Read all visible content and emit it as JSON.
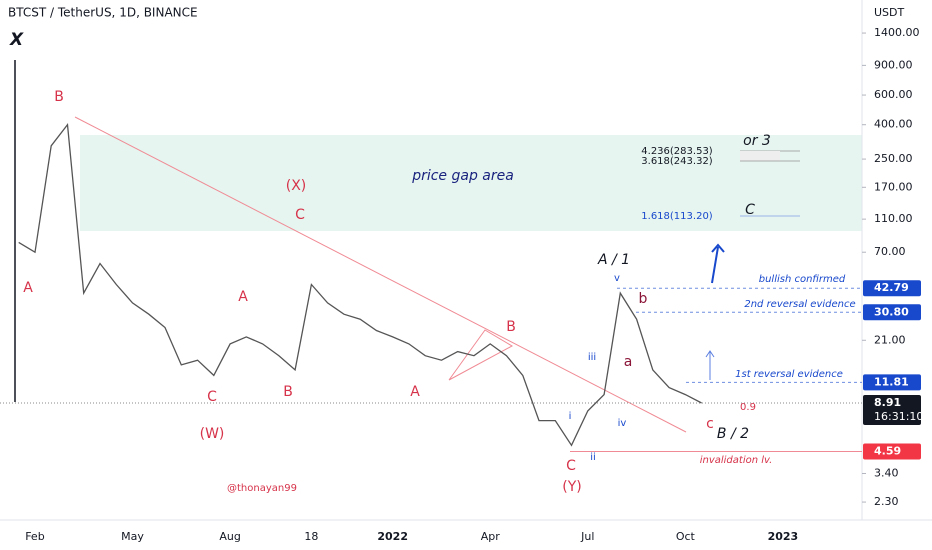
{
  "header": {
    "symbol": "BTCST / TetherUS, 1D, BINANCE",
    "logo": "X"
  },
  "chart_data": {
    "type": "line",
    "log_scale": true,
    "color": "#555555",
    "currency": "USDT",
    "categories": [
      null,
      "Feb",
      null,
      null,
      null,
      null,
      null,
      "May",
      null,
      null,
      null,
      null,
      null,
      "Aug",
      null,
      null,
      null,
      null,
      "18",
      null,
      null,
      null,
      null,
      "2022",
      null,
      null,
      null,
      null,
      null,
      "Apr",
      null,
      null,
      null,
      null,
      null,
      "Jul",
      null,
      null,
      null,
      null,
      null,
      "Oct",
      null,
      null,
      null,
      null,
      null,
      "2023"
    ],
    "values": [
      80,
      70,
      300,
      400,
      40,
      60,
      45,
      35,
      30,
      25,
      15,
      16,
      13,
      20,
      22,
      20,
      17,
      14,
      45,
      35,
      30,
      28,
      24,
      22,
      20,
      17,
      16,
      18,
      17,
      20,
      17,
      13,
      7,
      7,
      5,
      8,
      10,
      40,
      28,
      14,
      11,
      10,
      8.91,
      null,
      null,
      null,
      null,
      null
    ],
    "ylim": [
      1.8,
      2200
    ],
    "yticks": [
      {
        "value": 1400,
        "label": "1400.00"
      },
      {
        "value": 900,
        "label": "900.00"
      },
      {
        "value": 600,
        "label": "600.00"
      },
      {
        "value": 400,
        "label": "400.00"
      },
      {
        "value": 250,
        "label": "250.00"
      },
      {
        "value": 170,
        "label": "170.00"
      },
      {
        "value": 110,
        "label": "110.00"
      },
      {
        "value": 70,
        "label": "70.00"
      },
      {
        "value": 21,
        "label": "21.00"
      },
      {
        "value": 3.4,
        "label": "3.40"
      },
      {
        "value": 2.3,
        "label": "2.30"
      }
    ],
    "price_badges": [
      {
        "value": 42.79,
        "label": "42.79",
        "color": "#1848cc"
      },
      {
        "value": 30.8,
        "label": "30.80",
        "color": "#1848cc"
      },
      {
        "value": 11.81,
        "label": "11.81",
        "color": "#1848cc"
      },
      {
        "value": 8.91,
        "label": "8.91",
        "color": "#131722",
        "countdown": "16:31:10"
      },
      {
        "value": 4.59,
        "label": "4.59",
        "color": "#f23645"
      }
    ],
    "annotations": [
      {
        "text": "B",
        "color": "#d6334a"
      },
      {
        "text": "A",
        "color": "#d6334a"
      },
      {
        "text": "(X)",
        "color": "#d6334a"
      },
      {
        "text": "C",
        "color": "#d6334a"
      },
      {
        "text": "A",
        "color": "#d6334a"
      },
      {
        "text": "C",
        "color": "#d6334a"
      },
      {
        "text": "B",
        "color": "#d6334a"
      },
      {
        "text": "(W)",
        "color": "#d6334a"
      },
      {
        "text": "A",
        "color": "#d6334a"
      },
      {
        "text": "B",
        "color": "#d6334a"
      },
      {
        "text": "price gap area",
        "color": "#1a237e"
      },
      {
        "text": "C",
        "color": "#d6334a"
      },
      {
        "text": "(Y)",
        "color": "#d6334a"
      },
      {
        "text": "i",
        "color": "#1848cc"
      },
      {
        "text": "ii",
        "color": "#1848cc"
      },
      {
        "text": "iii",
        "color": "#1848cc"
      },
      {
        "text": "iv",
        "color": "#1848cc"
      },
      {
        "text": "v",
        "color": "#1848cc"
      },
      {
        "text": "A / 1",
        "color": "#131722"
      },
      {
        "text": "a",
        "color": "#8b1538"
      },
      {
        "text": "b",
        "color": "#8b1538"
      },
      {
        "text": "c",
        "color": "#d6334a"
      },
      {
        "text": "B / 2",
        "color": "#131722"
      },
      {
        "text": "0.9",
        "color": "#d6334a"
      },
      {
        "text": "bullish confirmed",
        "color": "#1848cc"
      },
      {
        "text": "2nd reversal evidence",
        "color": "#1848cc"
      },
      {
        "text": "1st reversal evidence",
        "color": "#1848cc"
      },
      {
        "text": "invalidation lv.",
        "color": "#d6334a"
      },
      {
        "text": "@thonayan99",
        "color": "#d6334a"
      },
      {
        "text": "or 3",
        "color": "#131722"
      },
      {
        "text": "C",
        "color": "#131722"
      },
      {
        "text": "4.236(283.53)",
        "color": "#131722"
      },
      {
        "text": "3.618(243.32)",
        "color": "#131722"
      },
      {
        "text": "1.618(113.20)",
        "color": "#1848cc"
      }
    ]
  }
}
